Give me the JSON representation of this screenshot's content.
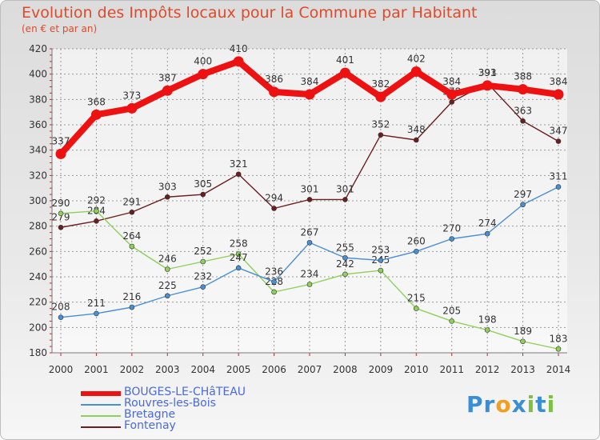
{
  "header": {
    "title": "Evolution des Impôts locaux pour la Commune par Habitant",
    "subtitle": "(en € et par an)"
  },
  "brand": {
    "letters": [
      "P",
      "r",
      "o",
      "x",
      "i",
      "t",
      "i"
    ],
    "colors": [
      "#3a8fd4",
      "#3a8fd4",
      "#f0a020",
      "#3a8fd4",
      "#7bc142",
      "#3a8fd4",
      "#7bc142"
    ]
  },
  "chart_data": {
    "type": "line",
    "title": "Evolution des Impôts locaux pour la Commune par Habitant",
    "subtitle": "(en € et par an)",
    "x": [
      "2000",
      "2001",
      "2002",
      "2003",
      "2004",
      "2005",
      "2006",
      "2007",
      "2008",
      "2009",
      "2010",
      "2011",
      "2012",
      "2013",
      "2014"
    ],
    "ylim": [
      180,
      420
    ],
    "yticks": [
      180,
      200,
      220,
      240,
      260,
      280,
      300,
      320,
      340,
      360,
      380,
      400,
      420
    ],
    "grid": true,
    "legend_position": "bottom-left",
    "series": [
      {
        "name": "Fontenay",
        "color": "#6b1e1e",
        "values": [
          279,
          284,
          291,
          303,
          305,
          321,
          294,
          301,
          301,
          352,
          348,
          378,
          393,
          363,
          347
        ]
      },
      {
        "name": "Bretagne",
        "color": "#8ed05a",
        "values": [
          290,
          292,
          264,
          246,
          252,
          258,
          228,
          234,
          242,
          245,
          215,
          205,
          198,
          189,
          183
        ]
      },
      {
        "name": "Rouvres-les-Bois",
        "color": "#4a8fd1",
        "values": [
          208,
          211,
          216,
          225,
          232,
          247,
          236,
          267,
          255,
          253,
          260,
          270,
          274,
          297,
          311
        ]
      },
      {
        "name": "BOUGES-LE-CHâTEAU",
        "color": "#ee1111",
        "values": [
          337,
          368,
          373,
          387,
          400,
          410,
          386,
          384,
          401,
          382,
          402,
          384,
          391,
          388,
          384
        ]
      }
    ]
  },
  "legend": [
    {
      "name": "BOUGES-LE-CHâTEAU",
      "color": "#ee1111",
      "thickness": 6
    },
    {
      "name": "Rouvres-les-Bois",
      "color": "#4a8fd1",
      "thickness": 2
    },
    {
      "name": "Bretagne",
      "color": "#8ed05a",
      "thickness": 2
    },
    {
      "name": "Fontenay",
      "color": "#6b1e1e",
      "thickness": 2
    }
  ]
}
